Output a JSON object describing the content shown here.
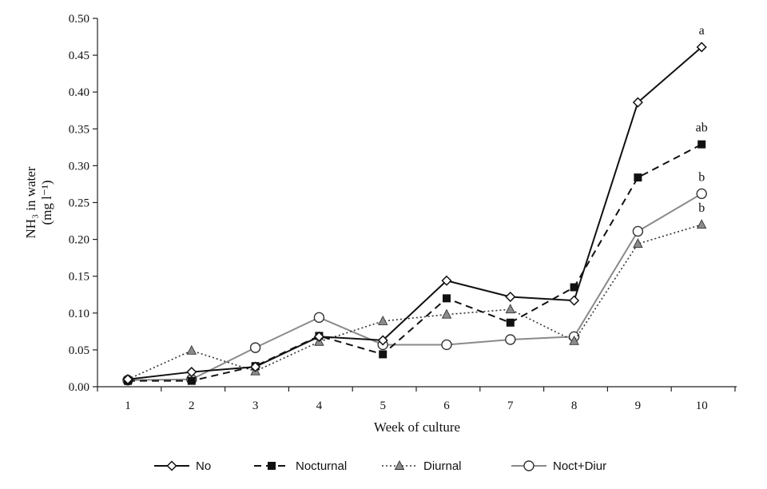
{
  "chart_data": {
    "type": "line",
    "xlabel": "Week of culture",
    "ylabel_line1": "NH₃ in water",
    "ylabel_line2": "(mg l⁻¹)",
    "x": [
      1,
      2,
      3,
      4,
      5,
      6,
      7,
      8,
      9,
      10
    ],
    "ylim": [
      0,
      0.5
    ],
    "yticks": [
      "0.00",
      "0.05",
      "0.10",
      "0.15",
      "0.20",
      "0.25",
      "0.30",
      "0.35",
      "0.40",
      "0.45",
      "0.50"
    ],
    "ytick_values": [
      0,
      0.05,
      0.1,
      0.15,
      0.2,
      0.25,
      0.3,
      0.35,
      0.4,
      0.45,
      0.5
    ],
    "grid": false,
    "legend_position": "bottom",
    "series": [
      {
        "name": "No",
        "values": [
          0.01,
          0.02,
          0.027,
          0.068,
          0.063,
          0.144,
          0.122,
          0.117,
          0.386,
          0.461
        ],
        "color": "#111111",
        "marker": "diamond-open",
        "dash": "solid"
      },
      {
        "name": "Nocturnal",
        "values": [
          0.008,
          0.008,
          0.028,
          0.069,
          0.044,
          0.12,
          0.087,
          0.135,
          0.284,
          0.329
        ],
        "color": "#111111",
        "marker": "square-filled",
        "dash": "dashed"
      },
      {
        "name": "Diurnal",
        "values": [
          0.01,
          0.049,
          0.021,
          0.061,
          0.089,
          0.098,
          0.105,
          0.062,
          0.194,
          0.22
        ],
        "color": "#333333",
        "marker": "triangle-gray",
        "dash": "dotted"
      },
      {
        "name": "Noct+Diur",
        "values": [
          0.009,
          0.01,
          0.053,
          0.094,
          0.057,
          0.057,
          0.064,
          0.068,
          0.211,
          0.262
        ],
        "color": "#8a8a8a",
        "marker": "circle-open",
        "dash": "solid"
      }
    ],
    "annotations": [
      {
        "text": "a",
        "series": "No"
      },
      {
        "text": "ab",
        "series": "Nocturnal"
      },
      {
        "text": "b",
        "series": "Noct+Diur"
      },
      {
        "text": "b",
        "series": "Diurnal"
      }
    ]
  }
}
